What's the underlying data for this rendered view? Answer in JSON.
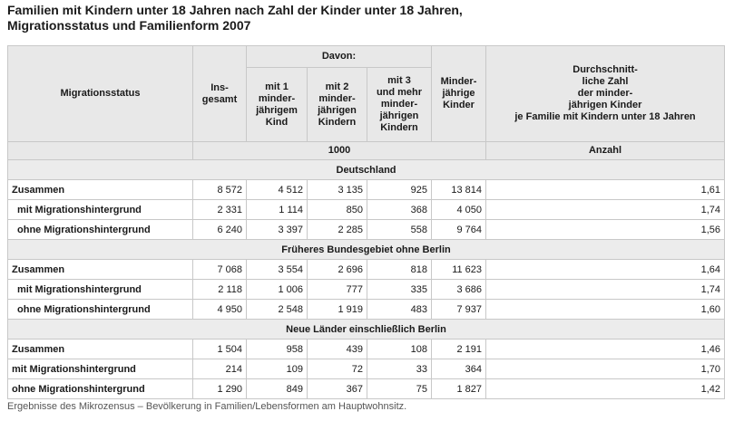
{
  "title_line1": "Familien mit Kindern unter 18 Jahren nach Zahl der Kinder unter 18 Jahren,",
  "title_line2": "Migrationsstatus und Familienform 2007",
  "header": {
    "col0": "Migrationsstatus",
    "col1": "Ins-\ngesamt",
    "davon": "Davon:",
    "col2": "mit 1\nminder-\njährigem\nKind",
    "col3": "mit 2\nminder-\njährigen\nKindern",
    "col4": "mit 3\nund mehr\nminder-\njährigen\nKindern",
    "col5": "Minder-\njährige\nKinder",
    "col6": "Durchschnitt-\nliche Zahl\nder minder-\njährigen Kinder\nje Familie mit Kindern unter 18 Jahren",
    "unit1": "1000",
    "unit2": "Anzahl"
  },
  "sections": [
    {
      "title": "Deutschland",
      "rows": [
        {
          "label": "Zusammen",
          "indent": false,
          "values": [
            "8 572",
            "4 512",
            "3 135",
            "925",
            "13 814",
            "1,61"
          ]
        },
        {
          "label": "mit Migrationshintergrund",
          "indent": true,
          "values": [
            "2 331",
            "1 114",
            "850",
            "368",
            "4 050",
            "1,74"
          ]
        },
        {
          "label": "ohne Migrationshintergrund",
          "indent": true,
          "values": [
            "6 240",
            "3 397",
            "2 285",
            "558",
            "9 764",
            "1,56"
          ]
        }
      ]
    },
    {
      "title": "Früheres Bundesgebiet ohne Berlin",
      "rows": [
        {
          "label": "Zusammen",
          "indent": false,
          "values": [
            "7 068",
            "3 554",
            "2 696",
            "818",
            "11 623",
            "1,64"
          ]
        },
        {
          "label": "mit Migrationshintergrund",
          "indent": true,
          "values": [
            "2 118",
            "1 006",
            "777",
            "335",
            "3 686",
            "1,74"
          ]
        },
        {
          "label": "ohne Migrationshintergrund",
          "indent": true,
          "values": [
            "4 950",
            "2 548",
            "1 919",
            "483",
            "7 937",
            "1,60"
          ]
        }
      ]
    },
    {
      "title": "Neue Länder einschließlich Berlin",
      "rows": [
        {
          "label": "Zusammen",
          "indent": false,
          "values": [
            "1 504",
            "958",
            "439",
            "108",
            "2 191",
            "1,46"
          ]
        },
        {
          "label": "mit Migrationshintergrund",
          "indent": false,
          "values": [
            "214",
            "109",
            "72",
            "33",
            "364",
            "1,70"
          ]
        },
        {
          "label": "ohne Migrationshintergrund",
          "indent": false,
          "values": [
            "1 290",
            "849",
            "367",
            "75",
            "1 827",
            "1,42"
          ]
        }
      ]
    }
  ],
  "footnote": "Ergebnisse des Mikrozensus – Bevölkerung in Familien/Lebensformen am Hauptwohnsitz."
}
